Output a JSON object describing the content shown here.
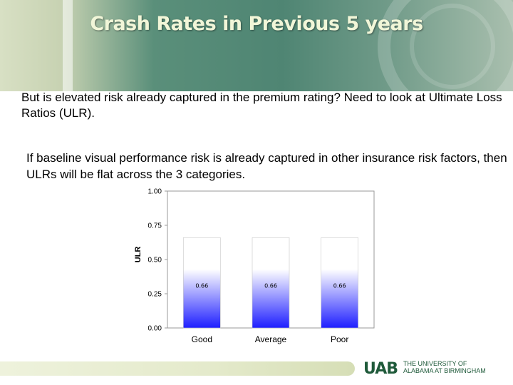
{
  "slide": {
    "title": "Crash Rates in Previous 5 years",
    "paragraph1": "But is elevated risk already captured in the premium rating? Need to look at Ultimate Loss Ratios (ULR).",
    "paragraph2": "If baseline visual performance risk is already captured in other insurance risk factors, then ULRs will be flat across the 3 categories."
  },
  "chart_data": {
    "type": "bar",
    "categories": [
      "Good",
      "Average",
      "Poor"
    ],
    "values": [
      0.66,
      0.66,
      0.66
    ],
    "data_labels": [
      "0.66",
      "0.66",
      "0.66"
    ],
    "ylabel": "ULR",
    "ylim": [
      0,
      1.0
    ],
    "yticks": [
      0.0,
      0.25,
      0.5,
      0.75,
      1.0
    ],
    "ytick_labels": [
      "0.00",
      "0.25",
      "0.50",
      "0.75",
      "1.00"
    ],
    "bar_gradient": [
      "#ffffff",
      "#1f1fff"
    ],
    "grid": false
  },
  "footer": {
    "logo_mark": "UAB",
    "logo_line1": "THE UNIVERSITY OF",
    "logo_line2": "ALABAMA AT BIRMINGHAM"
  }
}
